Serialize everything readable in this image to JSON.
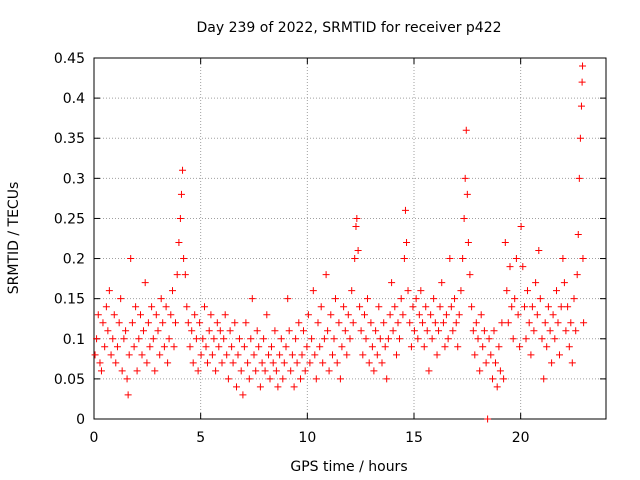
{
  "chart_data": {
    "type": "scatter",
    "title": "Day 239 of 2022, SRMTID for receiver p422",
    "xlabel": "GPS time / hours",
    "ylabel": "SRMTID / TECUs",
    "xlim": [
      0,
      24
    ],
    "ylim": [
      0,
      0.45
    ],
    "xticks": [
      0,
      5,
      10,
      15,
      20
    ],
    "xtick_labels": [
      "0",
      "5",
      "10",
      "15",
      "20"
    ],
    "yticks": [
      0,
      0.05,
      0.1,
      0.15,
      0.2,
      0.25,
      0.3,
      0.35,
      0.4,
      0.45
    ],
    "ytick_labels": [
      "0",
      "0.05",
      "0.1",
      "0.15",
      "0.2",
      "0.25",
      "0.3",
      "0.35",
      "0.4",
      "0.45"
    ],
    "grid": true,
    "marker": "+",
    "color": "#ff0000",
    "series": [
      {
        "name": "SRMTID",
        "points": [
          [
            0.05,
            0.08
          ],
          [
            0.12,
            0.1
          ],
          [
            0.2,
            0.13
          ],
          [
            0.28,
            0.07
          ],
          [
            0.35,
            0.06
          ],
          [
            0.42,
            0.12
          ],
          [
            0.5,
            0.09
          ],
          [
            0.58,
            0.14
          ],
          [
            0.65,
            0.11
          ],
          [
            0.72,
            0.16
          ],
          [
            0.8,
            0.08
          ],
          [
            0.88,
            0.1
          ],
          [
            0.95,
            0.13
          ],
          [
            1.02,
            0.07
          ],
          [
            1.1,
            0.09
          ],
          [
            1.18,
            0.12
          ],
          [
            1.25,
            0.15
          ],
          [
            1.32,
            0.06
          ],
          [
            1.4,
            0.1
          ],
          [
            1.48,
            0.11
          ],
          [
            1.55,
            0.05
          ],
          [
            1.6,
            0.03
          ],
          [
            1.65,
            0.08
          ],
          [
            1.72,
            0.2
          ],
          [
            1.8,
            0.12
          ],
          [
            1.88,
            0.09
          ],
          [
            1.95,
            0.14
          ],
          [
            2.02,
            0.06
          ],
          [
            2.1,
            0.1
          ],
          [
            2.18,
            0.13
          ],
          [
            2.25,
            0.08
          ],
          [
            2.32,
            0.11
          ],
          [
            2.4,
            0.17
          ],
          [
            2.48,
            0.07
          ],
          [
            2.55,
            0.12
          ],
          [
            2.62,
            0.09
          ],
          [
            2.7,
            0.14
          ],
          [
            2.78,
            0.1
          ],
          [
            2.85,
            0.06
          ],
          [
            2.92,
            0.13
          ],
          [
            3.0,
            0.11
          ],
          [
            3.08,
            0.08
          ],
          [
            3.15,
            0.15
          ],
          [
            3.22,
            0.12
          ],
          [
            3.3,
            0.09
          ],
          [
            3.38,
            0.14
          ],
          [
            3.45,
            0.07
          ],
          [
            3.52,
            0.1
          ],
          [
            3.6,
            0.13
          ],
          [
            3.68,
            0.16
          ],
          [
            3.75,
            0.09
          ],
          [
            3.82,
            0.12
          ],
          [
            3.9,
            0.18
          ],
          [
            3.98,
            0.22
          ],
          [
            4.05,
            0.25
          ],
          [
            4.1,
            0.28
          ],
          [
            4.15,
            0.31
          ],
          [
            4.2,
            0.2
          ],
          [
            4.28,
            0.18
          ],
          [
            4.35,
            0.14
          ],
          [
            4.42,
            0.12
          ],
          [
            4.5,
            0.09
          ],
          [
            4.58,
            0.11
          ],
          [
            4.65,
            0.07
          ],
          [
            4.72,
            0.13
          ],
          [
            4.8,
            0.1
          ],
          [
            4.88,
            0.06
          ],
          [
            4.95,
            0.12
          ],
          [
            5.02,
            0.08
          ],
          [
            5.1,
            0.1
          ],
          [
            5.18,
            0.14
          ],
          [
            5.25,
            0.09
          ],
          [
            5.32,
            0.07
          ],
          [
            5.4,
            0.11
          ],
          [
            5.48,
            0.13
          ],
          [
            5.55,
            0.08
          ],
          [
            5.62,
            0.1
          ],
          [
            5.7,
            0.06
          ],
          [
            5.78,
            0.12
          ],
          [
            5.85,
            0.09
          ],
          [
            5.92,
            0.11
          ],
          [
            6.0,
            0.07
          ],
          [
            6.08,
            0.1
          ],
          [
            6.15,
            0.13
          ],
          [
            6.22,
            0.08
          ],
          [
            6.3,
            0.05
          ],
          [
            6.38,
            0.11
          ],
          [
            6.45,
            0.09
          ],
          [
            6.52,
            0.07
          ],
          [
            6.6,
            0.12
          ],
          [
            6.68,
            0.04
          ],
          [
            6.75,
            0.08
          ],
          [
            6.82,
            0.1
          ],
          [
            6.9,
            0.06
          ],
          [
            6.98,
            0.03
          ],
          [
            7.05,
            0.09
          ],
          [
            7.12,
            0.12
          ],
          [
            7.2,
            0.07
          ],
          [
            7.28,
            0.05
          ],
          [
            7.35,
            0.1
          ],
          [
            7.42,
            0.15
          ],
          [
            7.5,
            0.08
          ],
          [
            7.58,
            0.06
          ],
          [
            7.65,
            0.11
          ],
          [
            7.72,
            0.09
          ],
          [
            7.8,
            0.04
          ],
          [
            7.88,
            0.07
          ],
          [
            7.95,
            0.1
          ],
          [
            8.02,
            0.06
          ],
          [
            8.1,
            0.13
          ],
          [
            8.18,
            0.08
          ],
          [
            8.25,
            0.05
          ],
          [
            8.32,
            0.09
          ],
          [
            8.4,
            0.07
          ],
          [
            8.48,
            0.11
          ],
          [
            8.55,
            0.06
          ],
          [
            8.62,
            0.04
          ],
          [
            8.7,
            0.08
          ],
          [
            8.78,
            0.1
          ],
          [
            8.85,
            0.05
          ],
          [
            8.92,
            0.07
          ],
          [
            9.0,
            0.09
          ],
          [
            9.08,
            0.15
          ],
          [
            9.15,
            0.11
          ],
          [
            9.22,
            0.06
          ],
          [
            9.3,
            0.08
          ],
          [
            9.38,
            0.04
          ],
          [
            9.45,
            0.1
          ],
          [
            9.52,
            0.07
          ],
          [
            9.6,
            0.12
          ],
          [
            9.68,
            0.05
          ],
          [
            9.75,
            0.08
          ],
          [
            9.82,
            0.11
          ],
          [
            9.9,
            0.06
          ],
          [
            9.98,
            0.09
          ],
          [
            10.05,
            0.13
          ],
          [
            10.12,
            0.07
          ],
          [
            10.2,
            0.1
          ],
          [
            10.28,
            0.16
          ],
          [
            10.35,
            0.08
          ],
          [
            10.42,
            0.05
          ],
          [
            10.5,
            0.12
          ],
          [
            10.58,
            0.09
          ],
          [
            10.65,
            0.14
          ],
          [
            10.72,
            0.07
          ],
          [
            10.8,
            0.1
          ],
          [
            10.88,
            0.18
          ],
          [
            10.95,
            0.11
          ],
          [
            11.02,
            0.06
          ],
          [
            11.1,
            0.13
          ],
          [
            11.18,
            0.08
          ],
          [
            11.25,
            0.1
          ],
          [
            11.32,
            0.15
          ],
          [
            11.4,
            0.07
          ],
          [
            11.48,
            0.12
          ],
          [
            11.55,
            0.05
          ],
          [
            11.62,
            0.09
          ],
          [
            11.7,
            0.14
          ],
          [
            11.78,
            0.11
          ],
          [
            11.85,
            0.08
          ],
          [
            11.92,
            0.13
          ],
          [
            12.0,
            0.1
          ],
          [
            12.08,
            0.16
          ],
          [
            12.15,
            0.12
          ],
          [
            12.22,
            0.2
          ],
          [
            12.28,
            0.24
          ],
          [
            12.32,
            0.25
          ],
          [
            12.38,
            0.21
          ],
          [
            12.45,
            0.14
          ],
          [
            12.52,
            0.11
          ],
          [
            12.6,
            0.08
          ],
          [
            12.68,
            0.13
          ],
          [
            12.75,
            0.1
          ],
          [
            12.82,
            0.15
          ],
          [
            12.9,
            0.07
          ],
          [
            12.98,
            0.12
          ],
          [
            13.05,
            0.09
          ],
          [
            13.12,
            0.06
          ],
          [
            13.2,
            0.11
          ],
          [
            13.28,
            0.08
          ],
          [
            13.35,
            0.14
          ],
          [
            13.42,
            0.1
          ],
          [
            13.5,
            0.07
          ],
          [
            13.58,
            0.12
          ],
          [
            13.65,
            0.09
          ],
          [
            13.72,
            0.05
          ],
          [
            13.8,
            0.1
          ],
          [
            13.88,
            0.13
          ],
          [
            13.95,
            0.17
          ],
          [
            14.02,
            0.11
          ],
          [
            14.1,
            0.14
          ],
          [
            14.18,
            0.08
          ],
          [
            14.25,
            0.12
          ],
          [
            14.32,
            0.1
          ],
          [
            14.4,
            0.15
          ],
          [
            14.48,
            0.13
          ],
          [
            14.55,
            0.2
          ],
          [
            14.6,
            0.26
          ],
          [
            14.65,
            0.22
          ],
          [
            14.72,
            0.16
          ],
          [
            14.8,
            0.12
          ],
          [
            14.88,
            0.09
          ],
          [
            14.95,
            0.14
          ],
          [
            15.02,
            0.11
          ],
          [
            15.1,
            0.15
          ],
          [
            15.18,
            0.1
          ],
          [
            15.25,
            0.13
          ],
          [
            15.32,
            0.16
          ],
          [
            15.4,
            0.12
          ],
          [
            15.48,
            0.09
          ],
          [
            15.55,
            0.14
          ],
          [
            15.62,
            0.11
          ],
          [
            15.7,
            0.06
          ],
          [
            15.78,
            0.13
          ],
          [
            15.85,
            0.1
          ],
          [
            15.92,
            0.15
          ],
          [
            16.0,
            0.12
          ],
          [
            16.08,
            0.08
          ],
          [
            16.15,
            0.11
          ],
          [
            16.22,
            0.14
          ],
          [
            16.3,
            0.17
          ],
          [
            16.38,
            0.12
          ],
          [
            16.45,
            0.09
          ],
          [
            16.52,
            0.13
          ],
          [
            16.6,
            0.1
          ],
          [
            16.68,
            0.2
          ],
          [
            16.75,
            0.14
          ],
          [
            16.82,
            0.11
          ],
          [
            16.9,
            0.15
          ],
          [
            16.98,
            0.12
          ],
          [
            17.05,
            0.09
          ],
          [
            17.12,
            0.13
          ],
          [
            17.2,
            0.16
          ],
          [
            17.28,
            0.2
          ],
          [
            17.35,
            0.25
          ],
          [
            17.4,
            0.3
          ],
          [
            17.45,
            0.36
          ],
          [
            17.5,
            0.28
          ],
          [
            17.55,
            0.22
          ],
          [
            17.62,
            0.18
          ],
          [
            17.7,
            0.14
          ],
          [
            17.78,
            0.11
          ],
          [
            17.85,
            0.08
          ],
          [
            17.92,
            0.12
          ],
          [
            18.0,
            0.1
          ],
          [
            18.08,
            0.06
          ],
          [
            18.15,
            0.13
          ],
          [
            18.22,
            0.09
          ],
          [
            18.3,
            0.11
          ],
          [
            18.38,
            0.07
          ],
          [
            18.45,
            0.0
          ],
          [
            18.52,
            0.1
          ],
          [
            18.6,
            0.08
          ],
          [
            18.68,
            0.05
          ],
          [
            18.75,
            0.11
          ],
          [
            18.82,
            0.07
          ],
          [
            18.9,
            0.04
          ],
          [
            18.98,
            0.09
          ],
          [
            19.05,
            0.06
          ],
          [
            19.12,
            0.12
          ],
          [
            19.2,
            0.05
          ],
          [
            19.28,
            0.22
          ],
          [
            19.35,
            0.16
          ],
          [
            19.42,
            0.12
          ],
          [
            19.5,
            0.19
          ],
          [
            19.58,
            0.14
          ],
          [
            19.65,
            0.1
          ],
          [
            19.72,
            0.15
          ],
          [
            19.8,
            0.2
          ],
          [
            19.88,
            0.13
          ],
          [
            19.95,
            0.09
          ],
          [
            20.02,
            0.24
          ],
          [
            20.1,
            0.19
          ],
          [
            20.18,
            0.14
          ],
          [
            20.25,
            0.1
          ],
          [
            20.32,
            0.16
          ],
          [
            20.4,
            0.12
          ],
          [
            20.48,
            0.08
          ],
          [
            20.55,
            0.14
          ],
          [
            20.62,
            0.11
          ],
          [
            20.7,
            0.17
          ],
          [
            20.78,
            0.13
          ],
          [
            20.85,
            0.21
          ],
          [
            20.92,
            0.15
          ],
          [
            21.0,
            0.1
          ],
          [
            21.08,
            0.05
          ],
          [
            21.15,
            0.12
          ],
          [
            21.22,
            0.09
          ],
          [
            21.3,
            0.14
          ],
          [
            21.38,
            0.11
          ],
          [
            21.45,
            0.07
          ],
          [
            21.52,
            0.13
          ],
          [
            21.6,
            0.1
          ],
          [
            21.68,
            0.16
          ],
          [
            21.75,
            0.12
          ],
          [
            21.82,
            0.08
          ],
          [
            21.9,
            0.14
          ],
          [
            21.98,
            0.2
          ],
          [
            22.05,
            0.17
          ],
          [
            22.12,
            0.11
          ],
          [
            22.2,
            0.14
          ],
          [
            22.28,
            0.09
          ],
          [
            22.35,
            0.12
          ],
          [
            22.42,
            0.07
          ],
          [
            22.5,
            0.15
          ],
          [
            22.58,
            0.11
          ],
          [
            22.65,
            0.18
          ],
          [
            22.7,
            0.23
          ],
          [
            22.75,
            0.3
          ],
          [
            22.8,
            0.35
          ],
          [
            22.85,
            0.39
          ],
          [
            22.88,
            0.42
          ],
          [
            22.9,
            0.44
          ],
          [
            22.92,
            0.2
          ],
          [
            22.95,
            0.12
          ]
        ]
      }
    ]
  }
}
